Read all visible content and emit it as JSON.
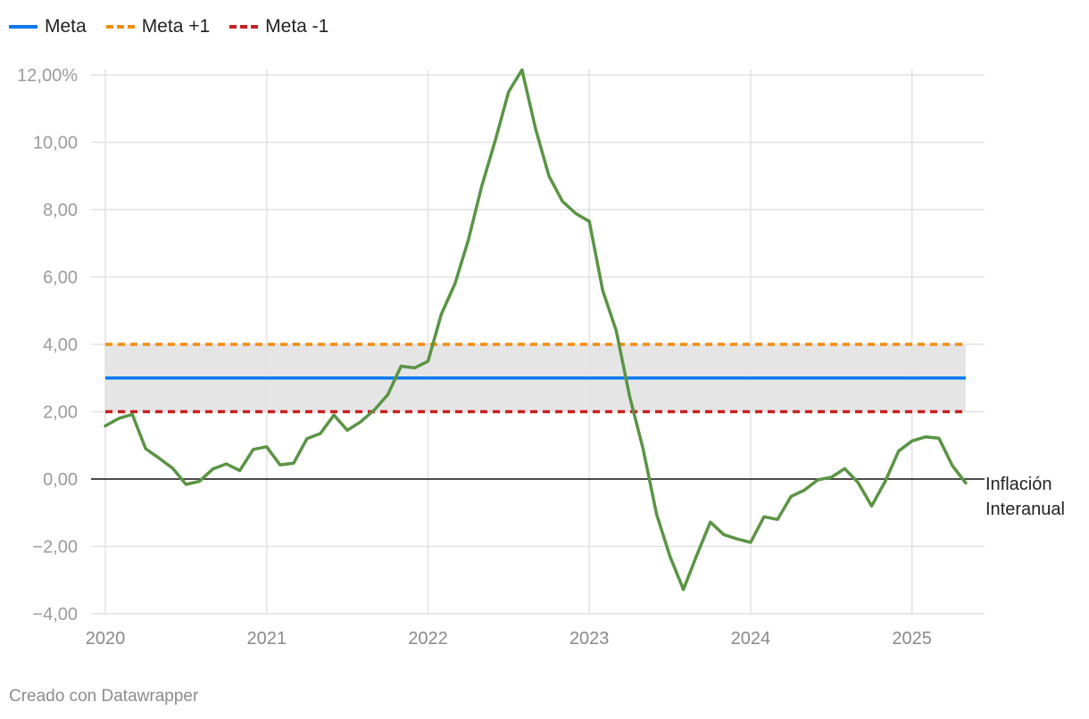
{
  "legend": {
    "items": [
      {
        "label": "Meta",
        "color": "#0b7af0",
        "style": "solid"
      },
      {
        "label": "Meta +1",
        "color": "#f28c0f",
        "style": "dashed"
      },
      {
        "label": "Meta -1",
        "color": "#c8201e",
        "style": "dashed"
      }
    ]
  },
  "footer": {
    "credit": "Creado con Datawrapper"
  },
  "chart_data": {
    "type": "line",
    "title": "",
    "xlabel": "",
    "ylabel": "",
    "ylim": [
      -4,
      12
    ],
    "xlim": [
      2020,
      2025.45
    ],
    "y_ticks": [
      {
        "value": 12,
        "label": "12,00%"
      },
      {
        "value": 10,
        "label": "10,00"
      },
      {
        "value": 8,
        "label": "8,00"
      },
      {
        "value": 6,
        "label": "6,00"
      },
      {
        "value": 4,
        "label": "4,00"
      },
      {
        "value": 2,
        "label": "2,00"
      },
      {
        "value": 0,
        "label": "0,00"
      },
      {
        "value": -2,
        "label": "−2,00"
      },
      {
        "value": -4,
        "label": "−4,00"
      }
    ],
    "x_ticks": [
      {
        "value": 2020,
        "label": "2020"
      },
      {
        "value": 2021,
        "label": "2021"
      },
      {
        "value": 2022,
        "label": "2022"
      },
      {
        "value": 2023,
        "label": "2023"
      },
      {
        "value": 2024,
        "label": "2024"
      },
      {
        "value": 2025,
        "label": "2025"
      }
    ],
    "grid": true,
    "band": {
      "from": 2,
      "to": 4,
      "color": "#e5e5e5"
    },
    "reference_lines": [
      {
        "name": "Meta",
        "value": 3,
        "color": "#0b7af0",
        "style": "solid"
      },
      {
        "name": "Meta +1",
        "value": 4,
        "color": "#f28c0f",
        "style": "dashed"
      },
      {
        "name": "Meta -1",
        "value": 2,
        "color": "#c8201e",
        "style": "dashed"
      }
    ],
    "series": [
      {
        "name": "Inflación Interanual",
        "label_lines": [
          "Inflación",
          "Interanual"
        ],
        "color": "#5a9444",
        "points": [
          [
            2020.0,
            1.58
          ],
          [
            2020.083,
            1.8
          ],
          [
            2020.167,
            1.92
          ],
          [
            2020.25,
            0.9
          ],
          [
            2020.333,
            0.62
          ],
          [
            2020.417,
            0.32
          ],
          [
            2020.5,
            -0.16
          ],
          [
            2020.583,
            -0.07
          ],
          [
            2020.667,
            0.3
          ],
          [
            2020.75,
            0.45
          ],
          [
            2020.833,
            0.25
          ],
          [
            2020.917,
            0.88
          ],
          [
            2021.0,
            0.96
          ],
          [
            2021.083,
            0.42
          ],
          [
            2021.167,
            0.47
          ],
          [
            2021.25,
            1.2
          ],
          [
            2021.333,
            1.35
          ],
          [
            2021.417,
            1.9
          ],
          [
            2021.5,
            1.45
          ],
          [
            2021.583,
            1.7
          ],
          [
            2021.667,
            2.05
          ],
          [
            2021.75,
            2.5
          ],
          [
            2021.833,
            3.35
          ],
          [
            2021.917,
            3.3
          ],
          [
            2022.0,
            3.5
          ],
          [
            2022.083,
            4.9
          ],
          [
            2022.167,
            5.8
          ],
          [
            2022.25,
            7.1
          ],
          [
            2022.333,
            8.7
          ],
          [
            2022.417,
            10.05
          ],
          [
            2022.5,
            11.5
          ],
          [
            2022.583,
            12.15
          ],
          [
            2022.667,
            10.4
          ],
          [
            2022.75,
            9.0
          ],
          [
            2022.833,
            8.25
          ],
          [
            2022.917,
            7.88
          ],
          [
            2023.0,
            7.65
          ],
          [
            2023.083,
            5.6
          ],
          [
            2023.167,
            4.4
          ],
          [
            2023.25,
            2.45
          ],
          [
            2023.333,
            0.9
          ],
          [
            2023.417,
            -1.05
          ],
          [
            2023.5,
            -2.3
          ],
          [
            2023.583,
            -3.28
          ],
          [
            2023.667,
            -2.25
          ],
          [
            2023.75,
            -1.28
          ],
          [
            2023.833,
            -1.65
          ],
          [
            2023.917,
            -1.78
          ],
          [
            2024.0,
            -1.88
          ],
          [
            2024.083,
            -1.12
          ],
          [
            2024.167,
            -1.2
          ],
          [
            2024.25,
            -0.52
          ],
          [
            2024.333,
            -0.33
          ],
          [
            2024.417,
            -0.02
          ],
          [
            2024.5,
            0.05
          ],
          [
            2024.583,
            0.31
          ],
          [
            2024.667,
            -0.11
          ],
          [
            2024.75,
            -0.8
          ],
          [
            2024.833,
            -0.08
          ],
          [
            2024.917,
            0.83
          ],
          [
            2025.0,
            1.13
          ],
          [
            2025.083,
            1.25
          ],
          [
            2025.167,
            1.21
          ],
          [
            2025.25,
            0.4
          ],
          [
            2025.333,
            -0.12
          ]
        ]
      }
    ]
  }
}
